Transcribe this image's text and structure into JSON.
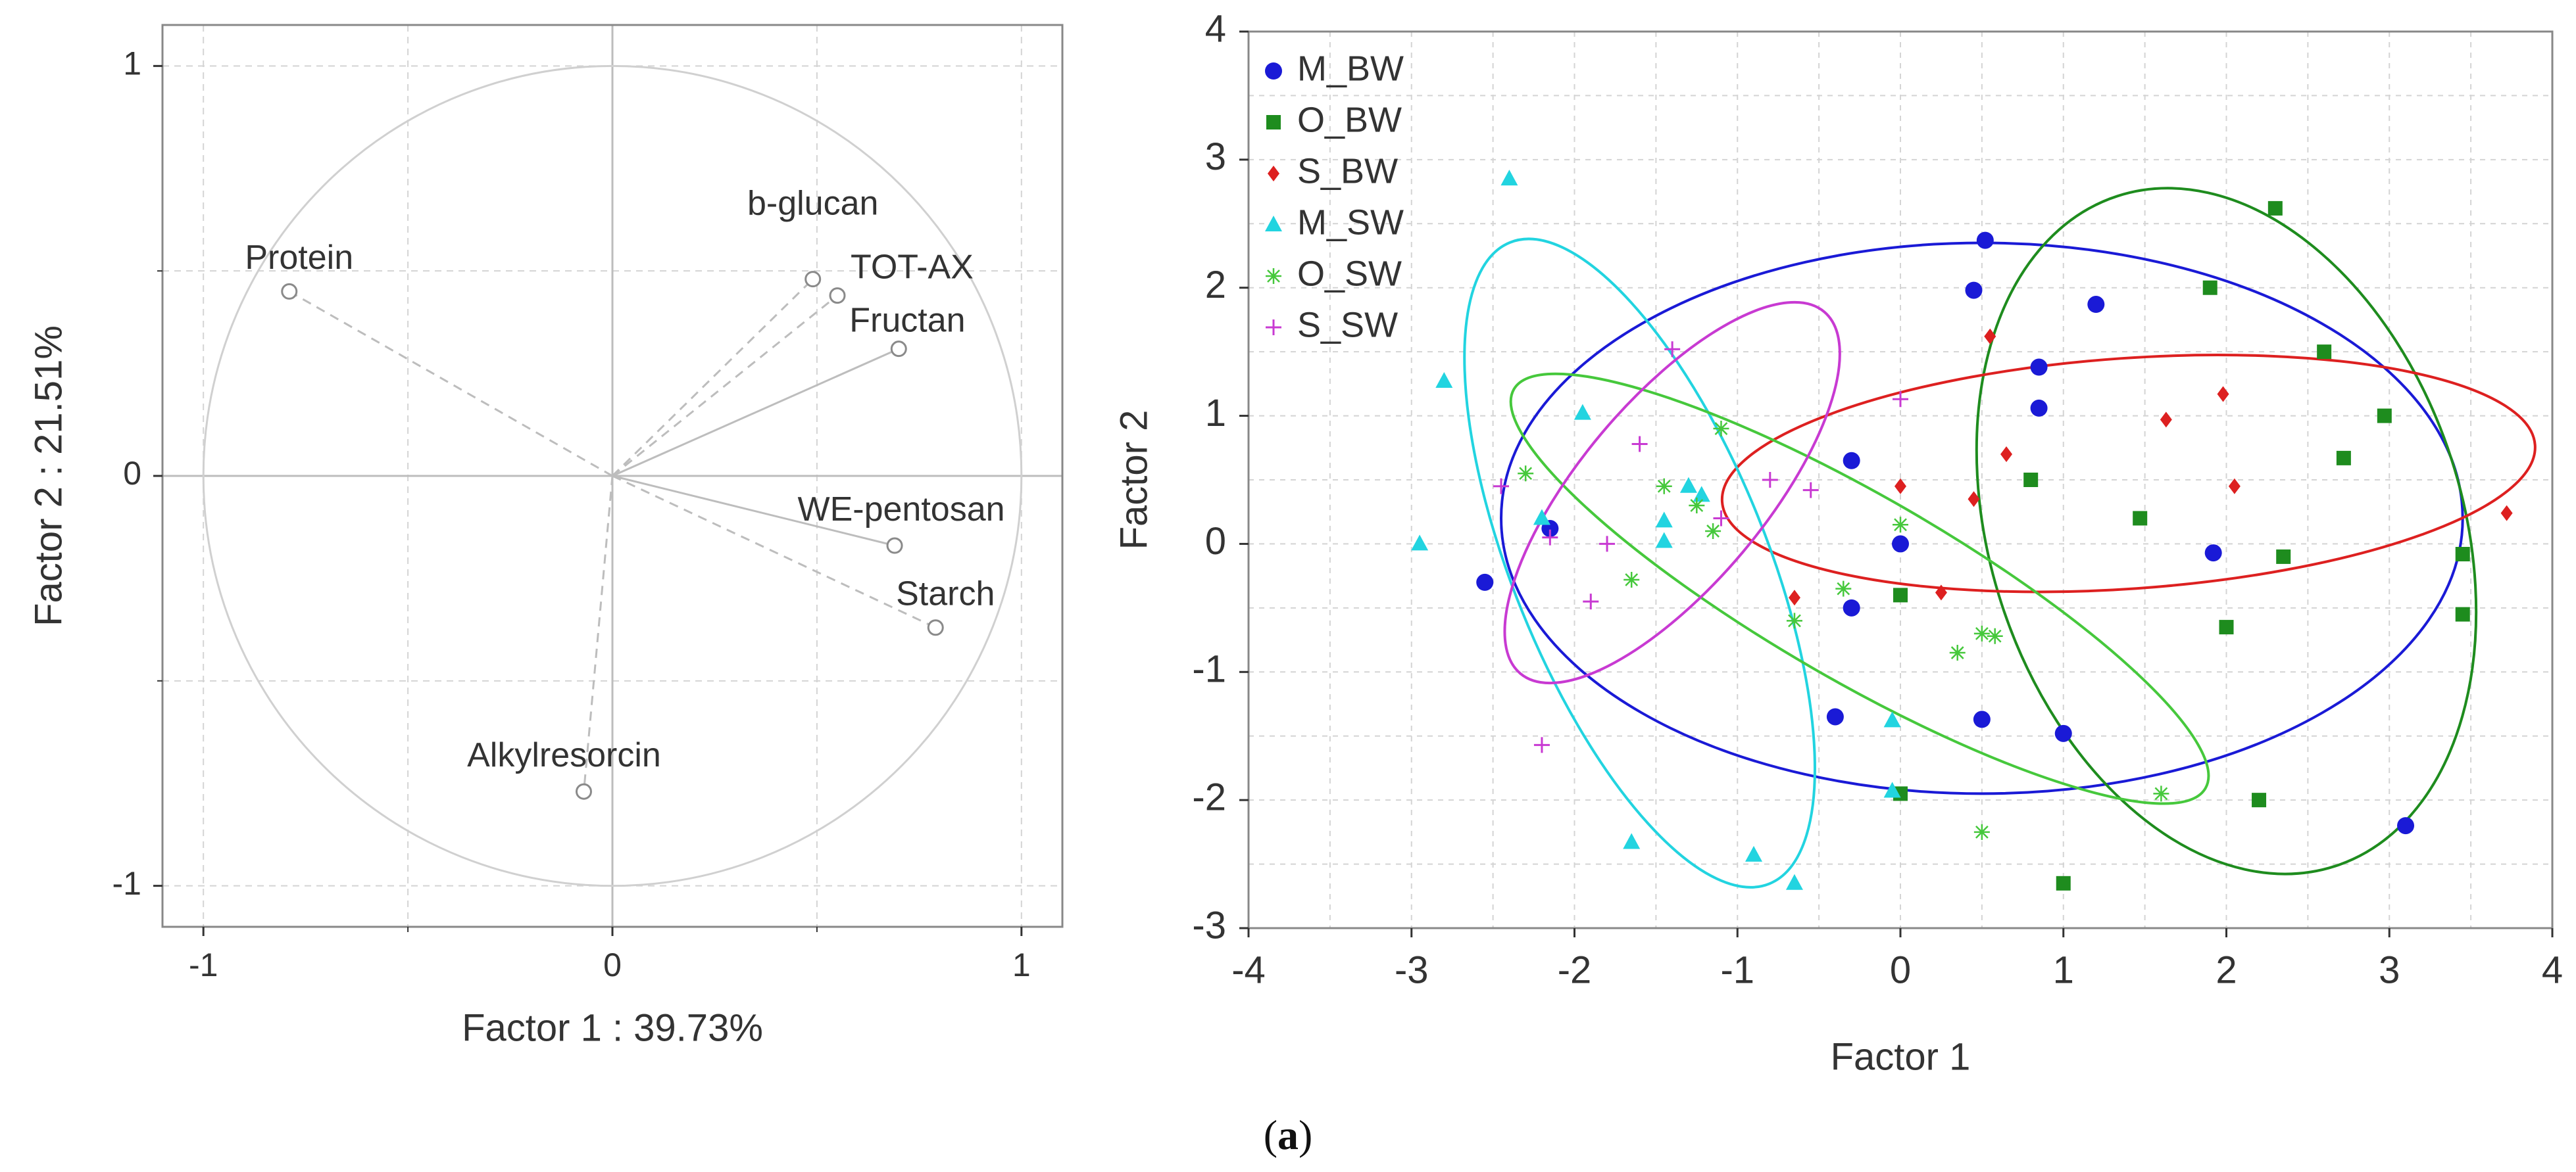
{
  "caption": {
    "open": "(",
    "label": "a",
    "close": ")"
  },
  "colors": {
    "grid": "#d4d4d4",
    "axis": "#333333",
    "frame": "#888888",
    "loading_line": "#bdbdbd",
    "circle": "#d0d0d0"
  },
  "chart_data": [
    {
      "id": "loadings",
      "type": "scatter",
      "title": "",
      "xlabel": "Factor 1 : 39.73%",
      "ylabel": "Factor 2 : 21.51%",
      "xlim": [
        -1.1,
        1.1
      ],
      "ylim": [
        -1.1,
        1.1
      ],
      "xticks": [
        -1,
        0,
        1
      ],
      "yticks": [
        -1,
        0,
        1
      ],
      "xtick_labels": [
        "-1",
        "0",
        "1"
      ],
      "ytick_labels": [
        "-1",
        "0",
        "1"
      ],
      "grid": true,
      "unit_circle": true,
      "points": [
        {
          "label": "Protein",
          "x": -0.79,
          "y": 0.45,
          "line": "dashed"
        },
        {
          "label": "b-glucan",
          "x": 0.49,
          "y": 0.48,
          "line": "dashed"
        },
        {
          "label": "TOT-AX",
          "x": 0.55,
          "y": 0.44,
          "line": "dashed"
        },
        {
          "label": "Fructan",
          "x": 0.7,
          "y": 0.31,
          "line": "solid"
        },
        {
          "label": "WE-pentosan",
          "x": 0.69,
          "y": -0.17,
          "line": "solid"
        },
        {
          "label": "Starch",
          "x": 0.79,
          "y": -0.37,
          "line": "dashed"
        },
        {
          "label": "Alkylresorcin",
          "x": -0.07,
          "y": -0.77,
          "line": "dashed"
        }
      ]
    },
    {
      "id": "scores",
      "type": "scatter",
      "title": "",
      "xlabel": "Factor 1",
      "ylabel": "Factor 2",
      "xlim": [
        -4,
        4
      ],
      "ylim": [
        -3,
        4
      ],
      "xticks": [
        -4,
        -3,
        -2,
        -1,
        0,
        1,
        2,
        3,
        4
      ],
      "yticks": [
        -3,
        -2,
        -1,
        0,
        1,
        2,
        3,
        4
      ],
      "xtick_labels": [
        "-4",
        "-3",
        "-2",
        "-1",
        "0",
        "1",
        "2",
        "3",
        "4"
      ],
      "ytick_labels": [
        "-3",
        "-2",
        "-1",
        "0",
        "1",
        "2",
        "3",
        "4"
      ],
      "grid": true,
      "legend_position": "top-left",
      "series": [
        {
          "name": "M_BW",
          "color": "#1a1ad6",
          "marker": "circle",
          "points": [
            [
              -2.55,
              -0.3
            ],
            [
              -2.15,
              0.12
            ],
            [
              -0.3,
              0.65
            ],
            [
              -0.3,
              -0.5
            ],
            [
              -0.4,
              -1.35
            ],
            [
              0,
              0
            ],
            [
              0.45,
              1.98
            ],
            [
              0.52,
              2.37
            ],
            [
              0.85,
              1.38
            ],
            [
              0.85,
              1.06
            ],
            [
              1.2,
              1.87
            ],
            [
              0.5,
              -1.37
            ],
            [
              1.0,
              -1.48
            ],
            [
              1.92,
              -0.07
            ],
            [
              3.1,
              -2.2
            ]
          ],
          "ellipse": {
            "cx": 0.5,
            "cy": 0.2,
            "rx": 2.95,
            "ry": 2.15,
            "angle": 0
          }
        },
        {
          "name": "O_BW",
          "color": "#1e8c1e",
          "marker": "square",
          "points": [
            [
              0,
              -0.4
            ],
            [
              0,
              -1.95
            ],
            [
              1.0,
              -2.65
            ],
            [
              0.8,
              0.5
            ],
            [
              1.47,
              0.2
            ],
            [
              1.9,
              2.0
            ],
            [
              2.0,
              -0.65
            ],
            [
              2.2,
              -2.0
            ],
            [
              2.3,
              2.62
            ],
            [
              2.35,
              -0.1
            ],
            [
              2.6,
              1.5
            ],
            [
              2.72,
              0.67
            ],
            [
              2.97,
              1.0
            ],
            [
              3.45,
              -0.08
            ],
            [
              3.45,
              -0.55
            ]
          ],
          "ellipse": {
            "cx": 2.0,
            "cy": 0.1,
            "rx": 1.45,
            "ry": 2.75,
            "angle": 18
          }
        },
        {
          "name": "S_BW",
          "color": "#dd2020",
          "marker": "diamond",
          "points": [
            [
              -0.65,
              -0.42
            ],
            [
              0,
              0.45
            ],
            [
              0.25,
              -0.38
            ],
            [
              0.45,
              0.35
            ],
            [
              0.55,
              1.62
            ],
            [
              0.65,
              0.7
            ],
            [
              1.63,
              0.97
            ],
            [
              1.98,
              1.17
            ],
            [
              2.05,
              0.45
            ],
            [
              3.72,
              0.24
            ]
          ],
          "ellipse": {
            "cx": 1.4,
            "cy": 0.55,
            "rx": 2.5,
            "ry": 0.9,
            "angle": 4
          }
        },
        {
          "name": "M_SW",
          "color": "#22d4e0",
          "marker": "triangle",
          "points": [
            [
              -2.95,
              0.0
            ],
            [
              -2.8,
              1.27
            ],
            [
              -2.4,
              2.85
            ],
            [
              -2.2,
              0.2
            ],
            [
              -1.95,
              1.02
            ],
            [
              -1.65,
              -2.33
            ],
            [
              -1.45,
              0.02
            ],
            [
              -1.45,
              0.18
            ],
            [
              -1.3,
              0.45
            ],
            [
              -1.22,
              0.38
            ],
            [
              -0.9,
              -2.43
            ],
            [
              -0.65,
              -2.65
            ],
            [
              -0.05,
              -1.38
            ],
            [
              -0.05,
              -1.93
            ]
          ],
          "ellipse": {
            "cx": -1.6,
            "cy": -0.15,
            "rx": 0.78,
            "ry": 2.7,
            "angle": 22
          }
        },
        {
          "name": "O_SW",
          "color": "#46c83c",
          "marker": "star",
          "points": [
            [
              -2.3,
              0.55
            ],
            [
              -1.65,
              -0.28
            ],
            [
              -1.45,
              0.45
            ],
            [
              -1.15,
              0.1
            ],
            [
              -1.1,
              0.9
            ],
            [
              -0.65,
              -0.6
            ],
            [
              -0.35,
              -0.35
            ],
            [
              0,
              0.15
            ],
            [
              0.35,
              -0.85
            ],
            [
              0.5,
              -0.7
            ],
            [
              0.58,
              -0.72
            ],
            [
              1.6,
              -1.95
            ],
            [
              0.5,
              -2.25
            ],
            [
              -1.25,
              0.3
            ]
          ],
          "ellipse": {
            "cx": -0.25,
            "cy": -0.35,
            "rx": 2.45,
            "ry": 0.72,
            "angle": -30
          }
        },
        {
          "name": "S_SW",
          "color": "#c83ad2",
          "marker": "plus",
          "points": [
            [
              -2.45,
              0.45
            ],
            [
              -2.2,
              -1.57
            ],
            [
              -2.15,
              0.05
            ],
            [
              -1.9,
              -0.45
            ],
            [
              -1.8,
              0.0
            ],
            [
              -1.6,
              0.78
            ],
            [
              -1.4,
              1.52
            ],
            [
              -1.1,
              0.2
            ],
            [
              -0.8,
              0.5
            ],
            [
              -0.55,
              0.42
            ],
            [
              0,
              1.13
            ]
          ],
          "ellipse": {
            "cx": -1.4,
            "cy": 0.4,
            "rx": 1.45,
            "ry": 0.72,
            "angle": 50
          }
        }
      ]
    }
  ]
}
